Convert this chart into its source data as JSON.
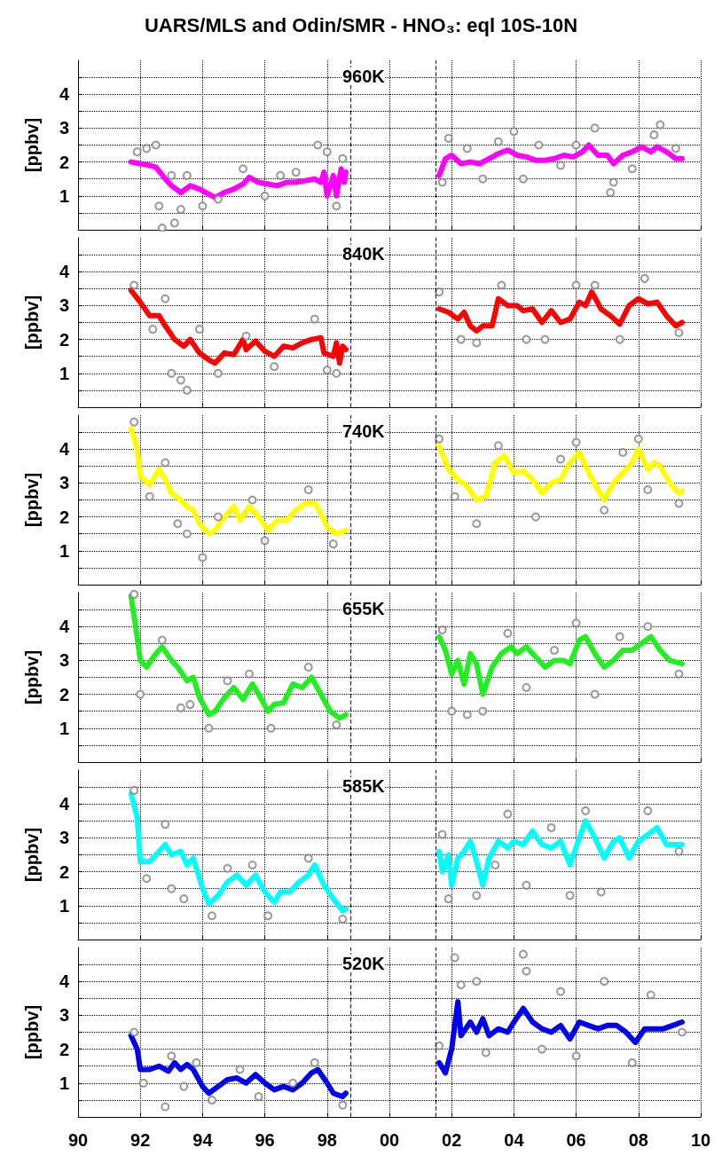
{
  "chart_data": [
    {
      "type": "line",
      "title": "UARS/MLS and Odin/SMR - HNO₃: eql 10S-10N",
      "annotations": [
        "960K"
      ],
      "ylabel": "[ppbv]",
      "xlim": [
        1990,
        2010
      ],
      "xticks": [
        {
          "value": 1990,
          "label": null
        },
        {
          "value": 1992,
          "label": null
        },
        {
          "value": 1994,
          "label": null
        },
        {
          "value": 1996,
          "label": null
        },
        {
          "value": 1998,
          "label": null
        },
        {
          "value": 2000,
          "label": null
        },
        {
          "value": 2002,
          "label": null
        },
        {
          "value": 2004,
          "label": null
        },
        {
          "value": 2006,
          "label": null
        },
        {
          "value": 2008,
          "label": null
        },
        {
          "value": 2010,
          "label": null
        }
      ],
      "ylim": [
        0,
        5
      ],
      "yticks": [
        {
          "value": 0.5,
          "label": null
        },
        1,
        {
          "value": 1.5,
          "label": null
        },
        2,
        {
          "value": 2.5,
          "label": null
        },
        3,
        {
          "value": 3.5,
          "label": null
        },
        4,
        {
          "value": 4.5,
          "label": null
        }
      ],
      "grid": true,
      "tick_labels": "y",
      "ref_lines": [
        {
          "axis": "x",
          "value": 1998.75,
          "color": "#1a1a9c",
          "line_style": "dashed"
        },
        {
          "axis": "x",
          "value": 2001.5,
          "color": "#1a1a9c",
          "line_style": "dashed"
        }
      ],
      "series": [
        {
          "type": "scatter",
          "color": "#808080",
          "marker": "circle",
          "x": [
            1991.9,
            1992.2,
            1992.5,
            1992.6,
            1992.7,
            1993.1,
            1993.3,
            1993.0,
            1993.5,
            1994.0,
            1994.5,
            1995.3,
            1996.0,
            1996.5,
            1997.0,
            1997.7,
            1998.0,
            1998.3,
            1998.5,
            2001.7,
            2001.9,
            2002.5,
            2003.0,
            2003.5,
            2004.0,
            2004.3,
            2004.8,
            2005.5,
            2006.0,
            2006.6,
            2007.1,
            2007.2,
            2007.8,
            2008.5,
            2008.7,
            2009.2
          ],
          "values": [
            2.3,
            2.4,
            2.5,
            0.7,
            0.05,
            0.2,
            0.6,
            1.6,
            1.6,
            0.7,
            0.9,
            1.8,
            1.0,
            1.6,
            1.7,
            2.5,
            2.3,
            0.7,
            2.1,
            1.4,
            2.7,
            2.4,
            1.5,
            2.6,
            2.9,
            1.5,
            2.5,
            1.9,
            2.5,
            3.0,
            1.1,
            1.4,
            1.8,
            2.8,
            3.1,
            2.4
          ]
        },
        {
          "type": "line",
          "color": "#ff00ff",
          "marker": "none",
          "x": [
            1991.7,
            1992.0,
            1992.3,
            1992.5,
            1992.8,
            1993.0,
            1993.3,
            1993.6,
            1993.9,
            1994.2,
            1994.4,
            1994.7,
            1995.0,
            1995.3,
            1995.5,
            1995.8,
            1996.1,
            1996.4,
            1996.7,
            1997.0,
            1997.3,
            1997.6,
            1997.8,
            1997.9,
            1998.0,
            1998.2,
            1998.3,
            1998.45,
            1998.55,
            1998.6,
            2000,
            2001.6,
            2001.8,
            2002.0,
            2002.3,
            2002.6,
            2002.9,
            2003.2,
            2003.5,
            2003.8,
            2004.1,
            2004.4,
            2004.7,
            2005.0,
            2005.3,
            2005.6,
            2005.9,
            2006.2,
            2006.4,
            2006.7,
            2007.0,
            2007.2,
            2007.5,
            2007.8,
            2008.1,
            2008.4,
            2008.6,
            2008.9,
            2009.2,
            2009.4
          ],
          "values": [
            2.0,
            1.95,
            1.9,
            1.85,
            1.5,
            1.3,
            1.1,
            1.3,
            1.2,
            1.05,
            0.95,
            1.1,
            1.2,
            1.35,
            1.55,
            1.4,
            1.35,
            1.3,
            1.4,
            1.4,
            1.45,
            1.5,
            1.4,
            1.7,
            1.0,
            1.6,
            1.0,
            1.8,
            1.4,
            1.7,
            null,
            1.6,
            2.1,
            2.2,
            1.95,
            2.0,
            1.95,
            2.1,
            2.25,
            2.35,
            2.2,
            2.15,
            2.05,
            2.05,
            2.1,
            2.2,
            2.15,
            2.3,
            2.5,
            2.2,
            2.2,
            1.95,
            2.2,
            2.3,
            2.45,
            2.3,
            2.45,
            2.3,
            2.1,
            2.1
          ]
        }
      ]
    },
    {
      "type": "line",
      "annotations": [
        "840K"
      ],
      "ylabel": "[ppbv]",
      "xlim": [
        1990,
        2010
      ],
      "xticks": [
        {
          "value": 1990,
          "label": null
        },
        {
          "value": 1992,
          "label": null
        },
        {
          "value": 1994,
          "label": null
        },
        {
          "value": 1996,
          "label": null
        },
        {
          "value": 1998,
          "label": null
        },
        {
          "value": 2000,
          "label": null
        },
        {
          "value": 2002,
          "label": null
        },
        {
          "value": 2004,
          "label": null
        },
        {
          "value": 2006,
          "label": null
        },
        {
          "value": 2008,
          "label": null
        },
        {
          "value": 2010,
          "label": null
        }
      ],
      "ylim": [
        0,
        5
      ],
      "yticks": [
        {
          "value": 0.5,
          "label": null
        },
        1,
        {
          "value": 1.5,
          "label": null
        },
        2,
        {
          "value": 2.5,
          "label": null
        },
        3,
        {
          "value": 3.5,
          "label": null
        },
        4,
        {
          "value": 4.5,
          "label": null
        }
      ],
      "grid": true,
      "tick_labels": "y",
      "ref_lines": [
        {
          "axis": "x",
          "value": 1998.75,
          "color": "#1a1a9c",
          "line_style": "dashed"
        },
        {
          "axis": "x",
          "value": 2001.5,
          "color": "#1a1a9c",
          "line_style": "dashed"
        }
      ],
      "series": [
        {
          "type": "scatter",
          "color": "#808080",
          "marker": "circle",
          "x": [
            1991.8,
            1992.4,
            1992.8,
            1993.0,
            1993.3,
            1993.5,
            1993.9,
            1994.5,
            1995.4,
            1996.3,
            1997.6,
            1998.0,
            1998.3,
            2001.6,
            2002.3,
            2002.8,
            2003.6,
            2004.4,
            2005.0,
            2006.0,
            2006.6,
            2007.4,
            2008.2,
            2009.3
          ],
          "values": [
            3.6,
            2.3,
            3.2,
            1.0,
            0.8,
            0.5,
            2.3,
            1.0,
            2.1,
            1.2,
            2.6,
            1.1,
            1.0,
            3.4,
            2.0,
            1.9,
            3.6,
            2.0,
            2.0,
            3.6,
            3.6,
            2.0,
            3.8,
            2.2
          ]
        },
        {
          "type": "line",
          "color": "#ff0000",
          "marker": "none",
          "x": [
            1991.7,
            1992.0,
            1992.3,
            1992.6,
            1992.8,
            1993.1,
            1993.4,
            1993.6,
            1993.9,
            1994.2,
            1994.4,
            1994.7,
            1995.0,
            1995.3,
            1995.4,
            1995.7,
            1996.0,
            1996.3,
            1996.6,
            1996.9,
            1997.2,
            1997.5,
            1997.8,
            1997.9,
            1998.2,
            1998.3,
            1998.4,
            1998.5,
            1998.6,
            2000,
            2001.6,
            2001.9,
            2002.2,
            2002.4,
            2002.6,
            2002.8,
            2003.0,
            2003.3,
            2003.5,
            2003.8,
            2004.1,
            2004.3,
            2004.6,
            2004.9,
            2005.2,
            2005.5,
            2005.8,
            2006.1,
            2006.3,
            2006.5,
            2006.8,
            2007.1,
            2007.4,
            2007.7,
            2008.0,
            2008.3,
            2008.6,
            2008.9,
            2009.2,
            2009.4
          ],
          "values": [
            3.45,
            3.1,
            2.7,
            2.7,
            2.4,
            2.0,
            1.8,
            2.0,
            1.6,
            1.4,
            1.3,
            1.6,
            1.55,
            2.0,
            1.7,
            1.95,
            1.65,
            1.5,
            1.8,
            1.75,
            1.9,
            2.0,
            2.05,
            1.6,
            1.5,
            1.9,
            1.3,
            1.8,
            1.7,
            null,
            2.9,
            2.8,
            2.6,
            2.8,
            2.4,
            2.25,
            2.4,
            2.4,
            3.2,
            3.0,
            3.0,
            2.85,
            2.9,
            2.5,
            2.85,
            2.5,
            2.6,
            3.1,
            3.0,
            3.4,
            2.9,
            2.7,
            2.45,
            3.0,
            3.2,
            3.05,
            3.1,
            2.7,
            2.4,
            2.5
          ]
        }
      ]
    },
    {
      "type": "line",
      "annotations": [
        "740K"
      ],
      "ylabel": "[ppbv]",
      "xlim": [
        1990,
        2010
      ],
      "xticks": [
        {
          "value": 1990,
          "label": null
        },
        {
          "value": 1992,
          "label": null
        },
        {
          "value": 1994,
          "label": null
        },
        {
          "value": 1996,
          "label": null
        },
        {
          "value": 1998,
          "label": null
        },
        {
          "value": 2000,
          "label": null
        },
        {
          "value": 2002,
          "label": null
        },
        {
          "value": 2004,
          "label": null
        },
        {
          "value": 2006,
          "label": null
        },
        {
          "value": 2008,
          "label": null
        },
        {
          "value": 2010,
          "label": null
        }
      ],
      "ylim": [
        0,
        5
      ],
      "yticks": [
        {
          "value": 0.5,
          "label": null
        },
        1,
        {
          "value": 1.5,
          "label": null
        },
        2,
        {
          "value": 2.5,
          "label": null
        },
        3,
        {
          "value": 3.5,
          "label": null
        },
        4,
        {
          "value": 4.5,
          "label": null
        }
      ],
      "grid": true,
      "tick_labels": "y",
      "ref_lines": [
        {
          "axis": "x",
          "value": 1998.75,
          "color": "#1a1a9c",
          "line_style": "dashed"
        },
        {
          "axis": "x",
          "value": 2001.5,
          "color": "#1a1a9c",
          "line_style": "dashed"
        }
      ],
      "series": [
        {
          "type": "scatter",
          "color": "#808080",
          "marker": "circle",
          "x": [
            1991.8,
            1992.3,
            1992.8,
            1993.2,
            1993.5,
            1994.0,
            1994.5,
            1995.6,
            1996.0,
            1997.4,
            1998.2,
            2001.6,
            2002.1,
            2002.8,
            2003.5,
            2004.7,
            2005.5,
            2006.0,
            2006.9,
            2007.5,
            2008.0,
            2008.3,
            2009.3
          ],
          "values": [
            4.8,
            2.6,
            3.6,
            1.8,
            1.5,
            0.8,
            2.0,
            2.5,
            1.3,
            2.8,
            1.2,
            4.3,
            2.6,
            1.8,
            4.1,
            2.0,
            3.7,
            4.2,
            2.2,
            3.9,
            4.3,
            2.8,
            2.4
          ]
        },
        {
          "type": "line",
          "color": "#ffff00",
          "marker": "none",
          "x": [
            1991.7,
            1991.9,
            1992.0,
            1992.3,
            1992.6,
            1992.8,
            1993.0,
            1993.3,
            1993.5,
            1993.7,
            1993.9,
            1994.2,
            1994.4,
            1994.7,
            1995.0,
            1995.2,
            1995.5,
            1995.8,
            1996.1,
            1996.4,
            1996.7,
            1997.0,
            1997.3,
            1997.6,
            1997.8,
            1998.0,
            1998.3,
            1998.6,
            2000,
            2001.6,
            2001.9,
            2002.2,
            2002.5,
            2002.8,
            2003.1,
            2003.4,
            2003.7,
            2004.0,
            2004.3,
            2004.6,
            2004.9,
            2005.2,
            2005.5,
            2005.8,
            2006.1,
            2006.4,
            2006.7,
            2006.9,
            2007.2,
            2007.5,
            2007.8,
            2008.0,
            2008.3,
            2008.5,
            2008.7,
            2009.0,
            2009.3,
            2009.4
          ],
          "values": [
            4.6,
            4.0,
            3.2,
            2.95,
            3.4,
            3.1,
            2.7,
            2.5,
            2.3,
            2.2,
            1.8,
            1.5,
            1.6,
            2.0,
            2.3,
            1.9,
            2.3,
            2.0,
            1.6,
            1.9,
            1.9,
            2.2,
            2.4,
            2.4,
            2.1,
            1.7,
            1.5,
            1.6,
            null,
            4.1,
            3.4,
            3.1,
            2.9,
            2.5,
            2.6,
            3.6,
            3.8,
            3.3,
            3.35,
            3.1,
            2.7,
            3.0,
            3.1,
            3.6,
            3.9,
            3.3,
            2.8,
            2.5,
            3.0,
            3.3,
            3.6,
            4.0,
            3.4,
            3.6,
            3.5,
            3.0,
            2.7,
            2.75
          ]
        }
      ]
    },
    {
      "type": "line",
      "annotations": [
        "655K"
      ],
      "ylabel": "[ppbv]",
      "xlim": [
        1990,
        2010
      ],
      "xticks": [
        {
          "value": 1990,
          "label": null
        },
        {
          "value": 1992,
          "label": null
        },
        {
          "value": 1994,
          "label": null
        },
        {
          "value": 1996,
          "label": null
        },
        {
          "value": 1998,
          "label": null
        },
        {
          "value": 2000,
          "label": null
        },
        {
          "value": 2002,
          "label": null
        },
        {
          "value": 2004,
          "label": null
        },
        {
          "value": 2006,
          "label": null
        },
        {
          "value": 2008,
          "label": null
        },
        {
          "value": 2010,
          "label": null
        }
      ],
      "ylim": [
        0,
        5
      ],
      "yticks": [
        {
          "value": 0.5,
          "label": null
        },
        1,
        {
          "value": 1.5,
          "label": null
        },
        2,
        {
          "value": 2.5,
          "label": null
        },
        3,
        {
          "value": 3.5,
          "label": null
        },
        4,
        {
          "value": 4.5,
          "label": null
        }
      ],
      "grid": true,
      "tick_labels": "y",
      "ref_lines": [
        {
          "axis": "x",
          "value": 1998.75,
          "color": "#1a1a9c",
          "line_style": "dashed"
        },
        {
          "axis": "x",
          "value": 2001.5,
          "color": "#1a1a9c",
          "line_style": "dashed"
        }
      ],
      "series": [
        {
          "type": "scatter",
          "color": "#808080",
          "marker": "circle",
          "x": [
            1991.8,
            1992.0,
            1992.7,
            1993.3,
            1993.6,
            1994.2,
            1994.8,
            1995.5,
            1996.2,
            1997.4,
            1998.3,
            2001.7,
            2002.0,
            2002.5,
            2003.0,
            2003.8,
            2004.4,
            2005.3,
            2006.0,
            2006.6,
            2007.4,
            2008.3,
            2009.3
          ],
          "values": [
            4.95,
            2.0,
            3.6,
            1.6,
            1.7,
            1.0,
            2.4,
            2.6,
            1.0,
            2.8,
            1.1,
            3.9,
            1.5,
            1.4,
            1.5,
            3.8,
            2.2,
            3.3,
            4.1,
            2.0,
            3.7,
            4.0,
            2.6
          ]
        },
        {
          "type": "line",
          "color": "#22ee22",
          "marker": "none",
          "x": [
            1991.7,
            1991.85,
            1992.0,
            1992.2,
            1992.5,
            1992.7,
            1993.0,
            1993.2,
            1993.5,
            1993.7,
            1993.9,
            1994.2,
            1994.4,
            1994.7,
            1995.0,
            1995.3,
            1995.6,
            1995.8,
            1996.1,
            1996.3,
            1996.6,
            1996.9,
            1997.2,
            1997.5,
            1997.8,
            1998.1,
            1998.4,
            1998.6,
            2000,
            2001.6,
            2001.8,
            2002.0,
            2002.2,
            2002.4,
            2002.6,
            2002.8,
            2003.0,
            2003.3,
            2003.6,
            2003.9,
            2004.1,
            2004.4,
            2004.7,
            2005.0,
            2005.3,
            2005.6,
            2005.8,
            2006.1,
            2006.3,
            2006.6,
            2006.9,
            2007.2,
            2007.5,
            2007.8,
            2008.1,
            2008.4,
            2008.7,
            2009.0,
            2009.4
          ],
          "values": [
            4.9,
            4.0,
            3.0,
            2.8,
            3.2,
            3.4,
            3.0,
            2.8,
            2.4,
            2.5,
            1.9,
            1.4,
            1.5,
            1.9,
            2.2,
            1.85,
            2.3,
            2.0,
            1.5,
            1.7,
            1.75,
            2.3,
            2.2,
            2.5,
            2.0,
            1.5,
            1.3,
            1.4,
            null,
            3.7,
            3.3,
            2.6,
            3.0,
            2.3,
            3.2,
            2.9,
            2.0,
            2.8,
            3.2,
            3.4,
            3.2,
            3.4,
            3.1,
            2.8,
            3.0,
            3.0,
            2.9,
            3.6,
            3.7,
            3.2,
            2.8,
            3.0,
            3.3,
            3.3,
            3.5,
            3.7,
            3.3,
            3.0,
            2.9
          ]
        }
      ]
    },
    {
      "type": "line",
      "annotations": [
        "585K"
      ],
      "ylabel": "[ppbv]",
      "xlim": [
        1990,
        2010
      ],
      "xticks": [
        {
          "value": 1990,
          "label": null
        },
        {
          "value": 1992,
          "label": null
        },
        {
          "value": 1994,
          "label": null
        },
        {
          "value": 1996,
          "label": null
        },
        {
          "value": 1998,
          "label": null
        },
        {
          "value": 2000,
          "label": null
        },
        {
          "value": 2002,
          "label": null
        },
        {
          "value": 2004,
          "label": null
        },
        {
          "value": 2006,
          "label": null
        },
        {
          "value": 2008,
          "label": null
        },
        {
          "value": 2010,
          "label": null
        }
      ],
      "ylim": [
        0,
        5
      ],
      "yticks": [
        {
          "value": 0.5,
          "label": null
        },
        1,
        {
          "value": 1.5,
          "label": null
        },
        2,
        {
          "value": 2.5,
          "label": null
        },
        3,
        {
          "value": 3.5,
          "label": null
        },
        4,
        {
          "value": 4.5,
          "label": null
        }
      ],
      "grid": true,
      "tick_labels": "y",
      "ref_lines": [
        {
          "axis": "x",
          "value": 1998.75,
          "color": "#1a1a9c",
          "line_style": "dashed"
        },
        {
          "axis": "x",
          "value": 2001.5,
          "color": "#1a1a9c",
          "line_style": "dashed"
        }
      ],
      "series": [
        {
          "type": "scatter",
          "color": "#808080",
          "marker": "circle",
          "x": [
            1991.8,
            1992.2,
            1992.8,
            1993.0,
            1993.4,
            1994.3,
            1994.8,
            1995.6,
            1996.1,
            1997.4,
            1998.5,
            2001.7,
            2001.9,
            2002.8,
            2003.4,
            2003.8,
            2004.4,
            2005.2,
            2005.8,
            2006.3,
            2006.8,
            2008.3,
            2009.3
          ],
          "values": [
            4.4,
            1.8,
            3.4,
            1.5,
            1.2,
            0.7,
            2.1,
            2.2,
            0.7,
            2.4,
            0.6,
            3.1,
            1.2,
            1.3,
            2.2,
            3.7,
            1.6,
            3.3,
            1.3,
            3.8,
            1.4,
            3.8,
            2.6
          ]
        },
        {
          "type": "line",
          "color": "#00ffff",
          "marker": "none",
          "x": [
            1991.7,
            1991.9,
            1992.0,
            1992.3,
            1992.6,
            1992.8,
            1993.0,
            1993.3,
            1993.5,
            1993.7,
            1994.0,
            1994.2,
            1994.5,
            1994.8,
            1995.1,
            1995.4,
            1995.7,
            1996.0,
            1996.3,
            1996.5,
            1996.8,
            1997.1,
            1997.4,
            1997.6,
            1997.9,
            1998.2,
            1998.5,
            1998.6,
            2000,
            2001.6,
            2001.7,
            2001.9,
            2002.0,
            2002.2,
            2002.4,
            2002.6,
            2002.8,
            2003.0,
            2003.2,
            2003.5,
            2003.8,
            2004.0,
            2004.3,
            2004.6,
            2004.9,
            2005.2,
            2005.5,
            2005.8,
            2006.1,
            2006.3,
            2006.6,
            2006.9,
            2007.2,
            2007.4,
            2007.7,
            2008.0,
            2008.3,
            2008.6,
            2008.9,
            2009.4
          ],
          "values": [
            4.3,
            3.6,
            2.3,
            2.3,
            2.6,
            2.8,
            2.5,
            2.6,
            2.2,
            2.4,
            1.5,
            1.05,
            1.3,
            1.7,
            1.9,
            1.6,
            1.9,
            1.4,
            1.1,
            1.4,
            1.4,
            1.7,
            1.9,
            2.2,
            1.6,
            1.2,
            0.85,
            0.9,
            null,
            2.6,
            2.0,
            2.5,
            1.6,
            2.4,
            2.6,
            2.9,
            2.3,
            1.6,
            2.4,
            2.9,
            2.7,
            2.9,
            2.8,
            3.2,
            2.8,
            2.7,
            2.9,
            2.2,
            3.0,
            3.5,
            3.0,
            2.4,
            2.9,
            3.0,
            2.4,
            2.9,
            3.1,
            3.3,
            2.8,
            2.8
          ]
        }
      ]
    },
    {
      "type": "line",
      "annotations": [
        "520K"
      ],
      "ylabel": "[ppbv]",
      "xlim": [
        1990,
        2010
      ],
      "xticks": [
        {
          "value": 1990,
          "label": "90"
        },
        {
          "value": 1992,
          "label": "92"
        },
        {
          "value": 1994,
          "label": "94"
        },
        {
          "value": 1996,
          "label": "96"
        },
        {
          "value": 1998,
          "label": "98"
        },
        {
          "value": 2000,
          "label": "00"
        },
        {
          "value": 2002,
          "label": "02"
        },
        {
          "value": 2004,
          "label": "04"
        },
        {
          "value": 2006,
          "label": "06"
        },
        {
          "value": 2008,
          "label": "08"
        },
        {
          "value": 2010,
          "label": "10"
        }
      ],
      "ylim": [
        0,
        5
      ],
      "yticks": [
        {
          "value": 0.5,
          "label": null
        },
        1,
        {
          "value": 1.5,
          "label": null
        },
        2,
        {
          "value": 2.5,
          "label": null
        },
        3,
        {
          "value": 3.5,
          "label": null
        },
        4,
        {
          "value": 4.5,
          "label": null
        }
      ],
      "grid": true,
      "ref_lines": [
        {
          "axis": "x",
          "value": 1998.75,
          "color": "#1a1a9c",
          "line_style": "dashed"
        },
        {
          "axis": "x",
          "value": 2001.5,
          "color": "#1a1a9c",
          "line_style": "dashed"
        }
      ],
      "series": [
        {
          "type": "scatter",
          "color": "#808080",
          "marker": "circle",
          "x": [
            1991.8,
            1992.1,
            1992.8,
            1993.0,
            1993.4,
            1993.8,
            1994.3,
            1995.2,
            1995.8,
            1996.9,
            1997.6,
            1998.5,
            2001.6,
            2002.1,
            2002.3,
            2002.8,
            2003.1,
            2004.3,
            2004.4,
            2004.9,
            2005.5,
            2006.0,
            2006.9,
            2007.8,
            2008.4,
            2009.4
          ],
          "values": [
            2.5,
            1.0,
            0.3,
            1.8,
            0.9,
            1.6,
            0.5,
            1.4,
            0.6,
            1.0,
            1.6,
            0.35,
            2.1,
            4.7,
            3.9,
            4.0,
            1.9,
            4.8,
            4.3,
            2.0,
            3.7,
            1.8,
            4.0,
            1.6,
            3.6,
            2.5
          ]
        },
        {
          "type": "line",
          "color": "#0000ee",
          "marker": "none",
          "x": [
            1991.7,
            1991.9,
            1992.0,
            1992.3,
            1992.6,
            1992.9,
            1993.1,
            1993.3,
            1993.5,
            1993.7,
            1994.0,
            1994.2,
            1994.5,
            1994.8,
            1995.1,
            1995.4,
            1995.7,
            1996.0,
            1996.3,
            1996.6,
            1996.9,
            1997.2,
            1997.5,
            1997.7,
            1998.0,
            1998.2,
            1998.5,
            1998.6,
            2000,
            2001.6,
            2001.8,
            2002.0,
            2002.2,
            2002.3,
            2002.6,
            2002.8,
            2003.0,
            2003.2,
            2003.5,
            2003.8,
            2004.0,
            2004.3,
            2004.6,
            2004.9,
            2005.2,
            2005.5,
            2005.8,
            2006.1,
            2006.4,
            2006.7,
            2007.0,
            2007.3,
            2007.6,
            2007.9,
            2008.2,
            2008.5,
            2008.8,
            2009.1,
            2009.4
          ],
          "values": [
            2.4,
            2.0,
            1.4,
            1.4,
            1.5,
            1.35,
            1.6,
            1.4,
            1.55,
            1.4,
            0.9,
            0.7,
            0.9,
            1.1,
            1.15,
            1.0,
            1.25,
            1.0,
            0.8,
            0.9,
            0.8,
            1.0,
            1.3,
            1.4,
            1.0,
            0.7,
            0.6,
            0.7,
            null,
            1.6,
            1.3,
            2.0,
            3.4,
            2.4,
            2.8,
            2.5,
            2.9,
            2.4,
            2.6,
            2.5,
            2.8,
            3.2,
            2.8,
            2.6,
            2.5,
            2.7,
            2.3,
            2.8,
            2.7,
            2.6,
            2.7,
            2.7,
            2.5,
            2.2,
            2.6,
            2.6,
            2.6,
            2.7,
            2.8
          ]
        }
      ]
    }
  ]
}
